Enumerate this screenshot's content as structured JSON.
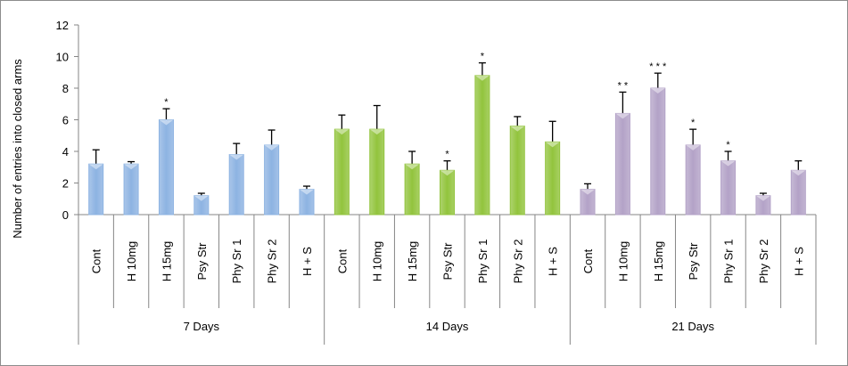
{
  "chart_data": {
    "type": "bar",
    "ylabel": "Number of entries into closed arms",
    "xlabel": "",
    "ylim": [
      0,
      12
    ],
    "yticks": [
      "0",
      "2",
      "4",
      "6",
      "8",
      "10",
      "12"
    ],
    "grid": false,
    "legend": "none",
    "categories": [
      "Cont",
      "H 10mg",
      "H 15mg",
      "Psy Str",
      "Phy Sr 1",
      "Phy Sr 2",
      "H + S"
    ],
    "groups": [
      {
        "name": "7 Days",
        "color": "#8db3e2",
        "values": [
          3.2,
          3.2,
          6.0,
          1.2,
          3.8,
          4.4,
          1.6
        ],
        "errors": [
          0.9,
          0.15,
          0.7,
          0.15,
          0.7,
          0.95,
          0.2
        ],
        "significance": [
          "",
          "",
          "*",
          "",
          "",
          "",
          ""
        ]
      },
      {
        "name": "14 Days",
        "color": "#92c43d",
        "values": [
          5.4,
          5.4,
          3.2,
          2.8,
          8.8,
          5.6,
          4.6
        ],
        "errors": [
          0.9,
          1.5,
          0.8,
          0.6,
          0.8,
          0.6,
          1.3
        ],
        "significance": [
          "",
          "",
          "",
          "*",
          "*",
          "",
          ""
        ]
      },
      {
        "name": "21 Days",
        "color": "#b3a2c7",
        "values": [
          1.6,
          6.4,
          8.0,
          4.4,
          3.4,
          1.2,
          2.8
        ],
        "errors": [
          0.35,
          1.35,
          0.95,
          1.0,
          0.6,
          0.15,
          0.6
        ],
        "significance": [
          "",
          "* *",
          "* * *",
          "*",
          "*",
          "",
          ""
        ]
      }
    ]
  }
}
